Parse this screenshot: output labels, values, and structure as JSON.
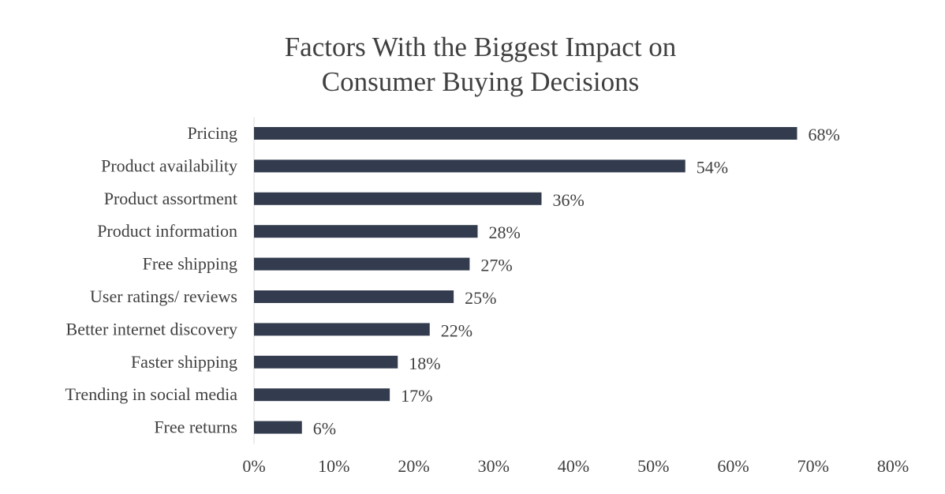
{
  "chart_data": {
    "type": "bar",
    "orientation": "horizontal",
    "title": "Factors With the Biggest Impact on Consumer Buying Decisions",
    "title_lines": [
      "Factors With the Biggest Impact on",
      "Consumer Buying Decisions"
    ],
    "categories": [
      "Pricing",
      "Product availability",
      "Product assortment",
      "Product information",
      "Free shipping",
      "User ratings/ reviews",
      "Better internet discovery",
      "Faster shipping",
      "Trending in social media",
      "Free returns"
    ],
    "values": [
      68,
      54,
      36,
      28,
      27,
      25,
      22,
      18,
      17,
      6
    ],
    "value_labels": [
      "68%",
      "54%",
      "36%",
      "28%",
      "27%",
      "25%",
      "22%",
      "18%",
      "17%",
      "6%"
    ],
    "xlim": [
      0,
      80
    ],
    "x_ticks": [
      0,
      10,
      20,
      30,
      40,
      50,
      60,
      70,
      80
    ],
    "x_tick_labels": [
      "0%",
      "10%",
      "20%",
      "30%",
      "40%",
      "50%",
      "60%",
      "70%",
      "80%"
    ],
    "xlabel": "",
    "ylabel": "",
    "grid": false,
    "legend": "none",
    "bar_color": "#333c4e",
    "text_color": "#404040",
    "axis_color": "#d9d9d9"
  }
}
